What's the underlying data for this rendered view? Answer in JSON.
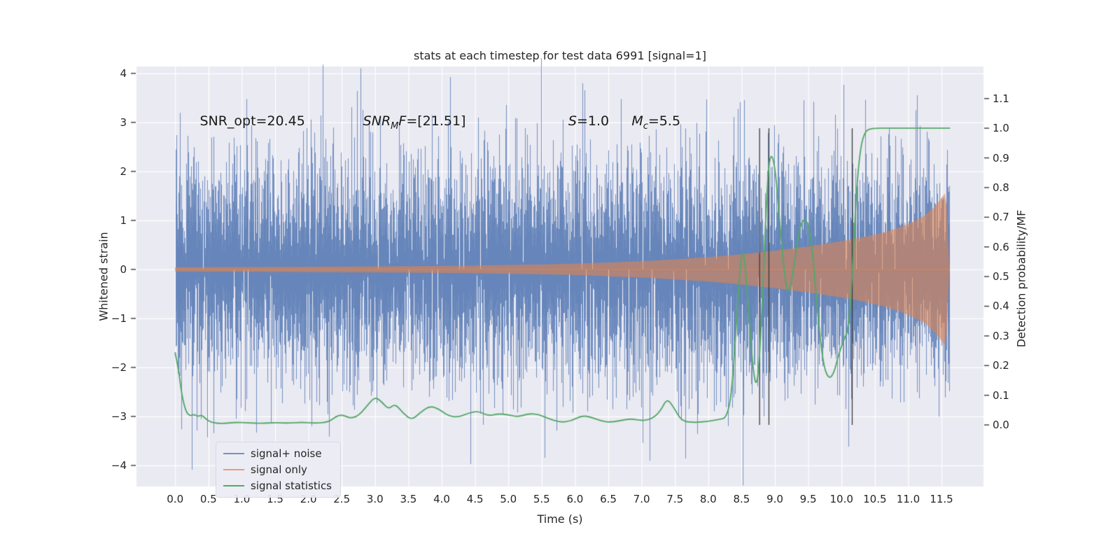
{
  "chart_data": {
    "type": "line",
    "title": "stats at each timestep for test data 6991 [signal=1]",
    "xlabel": "Time (s)",
    "ylabel_left": "Whitened strain",
    "ylabel_right": "Detection probability/MF",
    "xlim": [
      -0.58,
      12.13
    ],
    "ylim_left": [
      -4.43,
      4.14
    ],
    "ylim_right": [
      -0.2075,
      1.208
    ],
    "x_ticks": [
      0.0,
      0.5,
      1.0,
      1.5,
      2.0,
      2.5,
      3.0,
      3.5,
      4.0,
      4.5,
      5.0,
      5.5,
      6.0,
      6.5,
      7.0,
      7.5,
      8.0,
      8.5,
      9.0,
      9.5,
      10.0,
      10.5,
      11.0,
      11.5
    ],
    "y_ticks_left": [
      -4,
      -3,
      -2,
      -1,
      0,
      1,
      2,
      3,
      4
    ],
    "y_ticks_right": [
      0.0,
      0.1,
      0.2,
      0.3,
      0.4,
      0.5,
      0.6,
      0.7,
      0.8,
      0.9,
      1.0,
      1.1
    ],
    "grid": true,
    "legend_position": "lower left",
    "colors": {
      "axes_bg": "#eaeaf2",
      "grid": "#ffffff",
      "tick_mark": "#3a3a3a",
      "vline": "#3a3a3a",
      "text": "#262626"
    },
    "series": [
      {
        "name": "signal+ noise",
        "color": "#4C72B0",
        "alpha": 0.75,
        "kind": "noise"
      },
      {
        "name": "signal only",
        "color": "#DD8452",
        "alpha": 0.6,
        "kind": "envelope"
      },
      {
        "name": "signal statistics",
        "color": "#55A868",
        "alpha": 1.0,
        "kind": "line"
      }
    ],
    "noise": {
      "seed": 6991,
      "std": 1.12,
      "samples_per_column": 7,
      "t_start": 0.0,
      "t_end": 11.62
    },
    "signal_envelope": [
      [
        0.0,
        0.045
      ],
      [
        0.5,
        0.047
      ],
      [
        1.0,
        0.05
      ],
      [
        1.5,
        0.052
      ],
      [
        2.0,
        0.055
      ],
      [
        2.5,
        0.058
      ],
      [
        3.0,
        0.062
      ],
      [
        3.5,
        0.067
      ],
      [
        4.0,
        0.073
      ],
      [
        4.5,
        0.08
      ],
      [
        5.0,
        0.09
      ],
      [
        5.5,
        0.102
      ],
      [
        6.0,
        0.118
      ],
      [
        6.5,
        0.14
      ],
      [
        7.0,
        0.168
      ],
      [
        7.5,
        0.205
      ],
      [
        8.0,
        0.25
      ],
      [
        8.5,
        0.31
      ],
      [
        9.0,
        0.385
      ],
      [
        9.5,
        0.47
      ],
      [
        10.0,
        0.575
      ],
      [
        10.3,
        0.65
      ],
      [
        10.6,
        0.74
      ],
      [
        10.9,
        0.87
      ],
      [
        11.1,
        0.99
      ],
      [
        11.25,
        1.1
      ],
      [
        11.38,
        1.26
      ],
      [
        11.48,
        1.42
      ],
      [
        11.55,
        1.55
      ],
      [
        11.58,
        1.3
      ],
      [
        11.6,
        0.6
      ],
      [
        11.615,
        0.12
      ],
      [
        11.62,
        0.05
      ]
    ],
    "signal_statistics": [
      [
        0.0,
        0.243
      ],
      [
        0.05,
        0.19
      ],
      [
        0.1,
        0.1
      ],
      [
        0.16,
        0.045
      ],
      [
        0.22,
        0.03
      ],
      [
        0.28,
        0.036
      ],
      [
        0.34,
        0.028
      ],
      [
        0.4,
        0.034
      ],
      [
        0.47,
        0.018
      ],
      [
        0.55,
        0.008
      ],
      [
        0.7,
        0.004
      ],
      [
        0.9,
        0.009
      ],
      [
        1.1,
        0.007
      ],
      [
        1.3,
        0.005
      ],
      [
        1.5,
        0.008
      ],
      [
        1.7,
        0.006
      ],
      [
        1.9,
        0.009
      ],
      [
        2.1,
        0.006
      ],
      [
        2.3,
        0.009
      ],
      [
        2.42,
        0.03
      ],
      [
        2.52,
        0.034
      ],
      [
        2.62,
        0.022
      ],
      [
        2.75,
        0.03
      ],
      [
        2.9,
        0.07
      ],
      [
        3.0,
        0.095
      ],
      [
        3.1,
        0.078
      ],
      [
        3.2,
        0.052
      ],
      [
        3.3,
        0.072
      ],
      [
        3.42,
        0.04
      ],
      [
        3.55,
        0.016
      ],
      [
        3.68,
        0.042
      ],
      [
        3.82,
        0.064
      ],
      [
        3.95,
        0.055
      ],
      [
        4.1,
        0.03
      ],
      [
        4.25,
        0.026
      ],
      [
        4.4,
        0.04
      ],
      [
        4.55,
        0.047
      ],
      [
        4.7,
        0.03
      ],
      [
        4.85,
        0.038
      ],
      [
        5.0,
        0.034
      ],
      [
        5.15,
        0.027
      ],
      [
        5.3,
        0.038
      ],
      [
        5.45,
        0.036
      ],
      [
        5.6,
        0.022
      ],
      [
        5.78,
        0.008
      ],
      [
        5.95,
        0.014
      ],
      [
        6.1,
        0.032
      ],
      [
        6.25,
        0.026
      ],
      [
        6.4,
        0.012
      ],
      [
        6.55,
        0.009
      ],
      [
        6.7,
        0.016
      ],
      [
        6.85,
        0.021
      ],
      [
        7.0,
        0.014
      ],
      [
        7.15,
        0.02
      ],
      [
        7.28,
        0.045
      ],
      [
        7.38,
        0.09
      ],
      [
        7.48,
        0.06
      ],
      [
        7.6,
        0.012
      ],
      [
        7.8,
        0.008
      ],
      [
        8.0,
        0.012
      ],
      [
        8.15,
        0.018
      ],
      [
        8.28,
        0.024
      ],
      [
        8.36,
        0.12
      ],
      [
        8.45,
        0.45
      ],
      [
        8.52,
        0.63
      ],
      [
        8.6,
        0.4
      ],
      [
        8.68,
        0.16
      ],
      [
        8.74,
        0.13
      ],
      [
        8.8,
        0.35
      ],
      [
        8.88,
        0.8
      ],
      [
        8.93,
        0.92
      ],
      [
        9.0,
        0.88
      ],
      [
        9.08,
        0.66
      ],
      [
        9.16,
        0.47
      ],
      [
        9.22,
        0.44
      ],
      [
        9.3,
        0.56
      ],
      [
        9.38,
        0.68
      ],
      [
        9.48,
        0.7
      ],
      [
        9.56,
        0.6
      ],
      [
        9.64,
        0.38
      ],
      [
        9.72,
        0.21
      ],
      [
        9.8,
        0.155
      ],
      [
        9.88,
        0.17
      ],
      [
        9.96,
        0.24
      ],
      [
        10.04,
        0.29
      ],
      [
        10.1,
        0.32
      ],
      [
        10.16,
        0.5
      ],
      [
        10.22,
        0.78
      ],
      [
        10.28,
        0.93
      ],
      [
        10.35,
        0.99
      ],
      [
        10.45,
        1.0
      ],
      [
        10.7,
        1.0
      ],
      [
        11.0,
        1.0
      ],
      [
        11.3,
        1.0
      ],
      [
        11.62,
        1.0
      ]
    ],
    "vlines": {
      "x": [
        8.77,
        8.91,
        10.16
      ],
      "y_range": [
        0.0,
        1.0
      ]
    },
    "annotations": [
      {
        "t": 0.37,
        "strain": 3.02,
        "parts": [
          {
            "text": "SNR_opt=20.45"
          }
        ]
      },
      {
        "t": 2.82,
        "strain": 3.02,
        "parts": [
          {
            "text": "SNR",
            "italic": true
          },
          {
            "text": "M",
            "italic": true,
            "sub": true
          },
          {
            "text": "F",
            "italic": true
          },
          {
            "text": "=[21.51]"
          }
        ]
      },
      {
        "t": 5.9,
        "strain": 3.02,
        "parts": [
          {
            "text": "S",
            "italic": true
          },
          {
            "text": "=1.0"
          }
        ]
      },
      {
        "t": 6.85,
        "strain": 3.02,
        "parts": [
          {
            "text": "M",
            "italic": true
          },
          {
            "text": "c",
            "italic": true,
            "sub": true
          },
          {
            "text": "=5.5"
          }
        ]
      }
    ]
  }
}
